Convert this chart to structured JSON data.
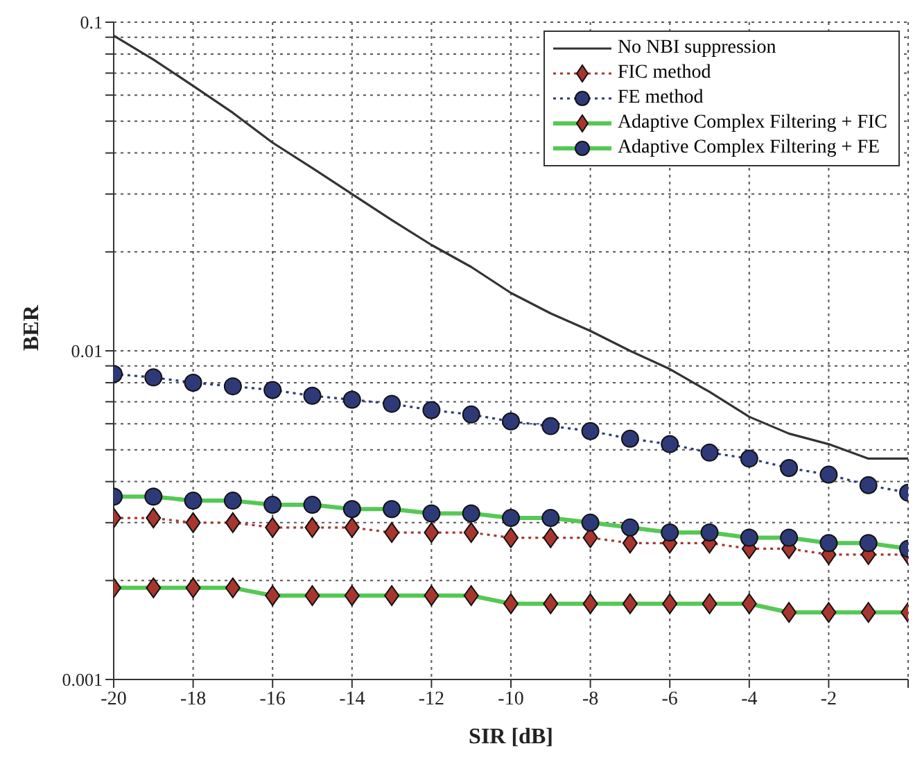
{
  "chart_data": {
    "type": "line",
    "xlabel": "SIR [dB]",
    "ylabel": "BER",
    "x": [
      -20,
      -19,
      -18,
      -17,
      -16,
      -15,
      -14,
      -13,
      -12,
      -11,
      -10,
      -9,
      -8,
      -7,
      -6,
      -5,
      -4,
      -3,
      -2,
      -1,
      0
    ],
    "series": [
      {
        "name": "No NBI suppression",
        "color": "#333333",
        "marker": "none",
        "line_style": "solid",
        "values": [
          0.091,
          0.077,
          0.064,
          0.053,
          0.043,
          0.036,
          0.03,
          0.025,
          0.021,
          0.018,
          0.015,
          0.013,
          0.0115,
          0.01,
          0.0088,
          0.0075,
          0.0063,
          0.0056,
          0.0052,
          0.0047,
          0.0047
        ]
      },
      {
        "name": "FIC method",
        "color": "#a8362e",
        "marker": "diamond",
        "line_style": "dotted",
        "values": [
          0.0031,
          0.0031,
          0.003,
          0.003,
          0.0029,
          0.0029,
          0.0029,
          0.0028,
          0.0028,
          0.0028,
          0.0027,
          0.0027,
          0.0027,
          0.0026,
          0.0026,
          0.0026,
          0.0025,
          0.0025,
          0.0024,
          0.0024,
          0.0024
        ]
      },
      {
        "name": "FE method",
        "color": "#2e3a78",
        "marker": "circle",
        "line_style": "dotted",
        "values": [
          0.0085,
          0.0083,
          0.008,
          0.0078,
          0.0076,
          0.0073,
          0.0071,
          0.0069,
          0.0066,
          0.0064,
          0.0061,
          0.0059,
          0.0057,
          0.0054,
          0.0052,
          0.0049,
          0.0047,
          0.0044,
          0.0042,
          0.0039,
          0.0037
        ]
      },
      {
        "name": "Adaptive Complex Filtering + FIC",
        "color": "#55c855",
        "marker": "diamond",
        "line_style": "solid",
        "colors": [
          "#a8362e",
          "#a8362e",
          "#a8362e",
          "#a8362e",
          "#a8362e",
          "#a8362e",
          "#a8362e",
          "#a8362e",
          "#a8362e",
          "#a8362e",
          "#a8362e",
          "#a8362e",
          "#a8362e",
          "#a8362e",
          "#a8362e",
          "#a8362e",
          "#a8362e",
          "#a8362e",
          "#a8362e",
          "#a8362e",
          "#a8362e"
        ],
        "values": [
          0.0019,
          0.0019,
          0.0019,
          0.0019,
          0.0018,
          0.0018,
          0.0018,
          0.0018,
          0.0018,
          0.0018,
          0.0017,
          0.0017,
          0.0017,
          0.0017,
          0.0017,
          0.0017,
          0.0017,
          0.0016,
          0.0016,
          0.0016,
          0.0016
        ]
      },
      {
        "name": "Adaptive Complex Filtering + FE",
        "color": "#55c855",
        "marker": "circle",
        "line_style": "solid",
        "colors": [
          "#2e3a78",
          "#2e3a78",
          "#2e3a78",
          "#2e3a78",
          "#2e3a78",
          "#2e3a78",
          "#2e3a78",
          "#2e3a78",
          "#2e3a78",
          "#2e3a78",
          "#2e3a78",
          "#2e3a78",
          "#2e3a78",
          "#2e3a78",
          "#2e3a78",
          "#2e3a78",
          "#2e3a78",
          "#2e3a78",
          "#2e3a78",
          "#2e3a78",
          "#2e3a78"
        ],
        "values": [
          0.0036,
          0.0036,
          0.0035,
          0.0035,
          0.0034,
          0.0034,
          0.0033,
          0.0033,
          0.0032,
          0.0032,
          0.0031,
          0.0031,
          0.003,
          0.0029,
          0.0028,
          0.0028,
          0.0027,
          0.0027,
          0.0026,
          0.0026,
          0.0025
        ]
      }
    ],
    "xlim": [
      -20,
      0
    ],
    "xticks": [
      -20,
      -18,
      -16,
      -14,
      -12,
      -10,
      -8,
      -6,
      -4,
      -2,
      {
        "value": 0,
        "label": null
      }
    ],
    "log": true,
    "ylim": [
      0.001,
      0.1
    ],
    "yticks": [
      0.001,
      {
        "value": 0.002,
        "label": null
      },
      {
        "value": 0.003,
        "label": null
      },
      {
        "value": 0.004,
        "label": null
      },
      {
        "value": 0.005,
        "label": null
      },
      {
        "value": 0.006,
        "label": null
      },
      {
        "value": 0.007,
        "label": null
      },
      {
        "value": 0.008,
        "label": null
      },
      {
        "value": 0.009,
        "label": null
      },
      0.01,
      {
        "value": 0.02,
        "label": null
      },
      {
        "value": 0.03,
        "label": null
      },
      {
        "value": 0.04,
        "label": null
      },
      {
        "value": 0.05,
        "label": null
      },
      {
        "value": 0.06,
        "label": null
      },
      {
        "value": 0.07,
        "label": null
      },
      {
        "value": 0.08,
        "label": null
      },
      {
        "value": 0.09,
        "label": null
      },
      0.1
    ],
    "grid": true,
    "legend": "top right"
  }
}
